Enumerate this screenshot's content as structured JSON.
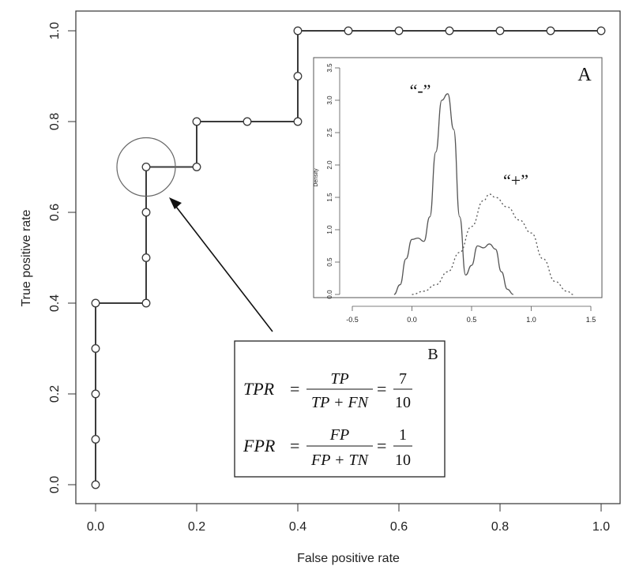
{
  "chart_data": [
    {
      "id": "main",
      "type": "line",
      "xlabel": "False positive rate",
      "ylabel": "True positive rate",
      "xlim": [
        0,
        1
      ],
      "ylim": [
        0,
        1
      ],
      "xticks": [
        "0.0",
        "0.2",
        "0.4",
        "0.6",
        "0.8",
        "1.0"
      ],
      "yticks": [
        "0.0",
        "0.2",
        "0.4",
        "0.6",
        "0.8",
        "1.0"
      ],
      "grid": false,
      "step_path": [
        [
          0,
          0
        ],
        [
          0,
          0.4
        ],
        [
          0.1,
          0.4
        ],
        [
          0.1,
          0.7
        ],
        [
          0.2,
          0.7
        ],
        [
          0.2,
          0.8
        ],
        [
          0.4,
          0.8
        ],
        [
          0.4,
          1.0
        ],
        [
          1.0,
          1.0
        ]
      ],
      "points": [
        [
          0,
          0
        ],
        [
          0,
          0.1
        ],
        [
          0,
          0.2
        ],
        [
          0,
          0.3
        ],
        [
          0,
          0.4
        ],
        [
          0.1,
          0.4
        ],
        [
          0.1,
          0.5
        ],
        [
          0.1,
          0.6
        ],
        [
          0.1,
          0.7
        ],
        [
          0.2,
          0.7
        ],
        [
          0.2,
          0.8
        ],
        [
          0.3,
          0.8
        ],
        [
          0.4,
          0.8
        ],
        [
          0.4,
          0.9
        ],
        [
          0.4,
          1.0
        ],
        [
          0.5,
          1.0
        ],
        [
          0.6,
          1.0
        ],
        [
          0.7,
          1.0
        ],
        [
          0.8,
          1.0
        ],
        [
          0.9,
          1.0
        ],
        [
          1.0,
          1.0
        ]
      ],
      "highlight_point": [
        0.1,
        0.7
      ]
    },
    {
      "id": "inset",
      "type": "line",
      "panel_label": "A",
      "ylabel": "Density",
      "xlim": [
        -0.6,
        1.6
      ],
      "ylim": [
        0,
        3.6
      ],
      "xticks": [
        "-0.5",
        "0.0",
        "0.5",
        "1.0",
        "1.5"
      ],
      "yticks": [
        "0.0",
        "0.5",
        "1.0",
        "1.5",
        "2.0",
        "2.5",
        "3.0",
        "3.5"
      ],
      "series": [
        {
          "name": "“-”",
          "style": "solid",
          "x": [
            -0.15,
            -0.1,
            -0.05,
            0.0,
            0.05,
            0.1,
            0.15,
            0.2,
            0.25,
            0.3,
            0.35,
            0.4,
            0.45,
            0.5,
            0.55,
            0.6,
            0.65,
            0.7,
            0.75,
            0.8,
            0.85
          ],
          "values": [
            0.0,
            0.15,
            0.55,
            0.85,
            0.87,
            0.82,
            1.2,
            2.2,
            3.0,
            3.1,
            2.55,
            1.2,
            0.3,
            0.45,
            0.75,
            0.72,
            0.78,
            0.7,
            0.35,
            0.08,
            0.0
          ]
        },
        {
          "name": "“+”",
          "style": "dotted",
          "x": [
            0.0,
            0.1,
            0.2,
            0.3,
            0.4,
            0.5,
            0.6,
            0.65,
            0.7,
            0.8,
            0.9,
            1.0,
            1.1,
            1.2,
            1.3,
            1.35
          ],
          "values": [
            0.0,
            0.05,
            0.15,
            0.35,
            0.65,
            1.05,
            1.45,
            1.55,
            1.5,
            1.35,
            1.15,
            0.95,
            0.55,
            0.2,
            0.05,
            0.0
          ]
        }
      ]
    }
  ],
  "formula_box": {
    "label": "B",
    "tpr": {
      "lhs": "TPR",
      "num": "TP",
      "den": "TP + FN",
      "frac_num": "7",
      "frac_den": "10"
    },
    "fpr": {
      "lhs": "FPR",
      "num": "FP",
      "den": "FP + TN",
      "frac_num": "1",
      "frac_den": "10"
    }
  },
  "colors": {
    "line": "#3a3a3a",
    "frame": "#333333",
    "highlight": "#666666"
  }
}
